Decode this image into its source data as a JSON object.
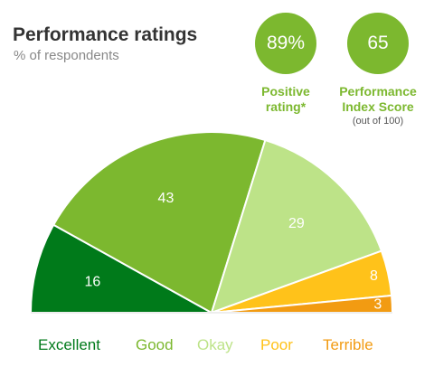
{
  "header": {
    "title": "Performance ratings",
    "subtitle": "% of respondents"
  },
  "stats": [
    {
      "value": "89%",
      "label_lines": [
        "Positive",
        "rating*"
      ],
      "note": ""
    },
    {
      "value": "65",
      "label_lines": [
        "Performance",
        "Index Score"
      ],
      "note": "(out of 100)"
    }
  ],
  "chart_data": {
    "type": "pie",
    "subtype": "semicircle",
    "title": "Performance ratings",
    "subtitle": "% of respondents",
    "categories": [
      "Excellent",
      "Good",
      "Okay",
      "Poor",
      "Terrible"
    ],
    "values": [
      16,
      43,
      29,
      8,
      3
    ],
    "colors": [
      "#007a1a",
      "#7cb82f",
      "#bde388",
      "#ffc21a",
      "#f29b12"
    ],
    "legend_placement": "bottom"
  }
}
